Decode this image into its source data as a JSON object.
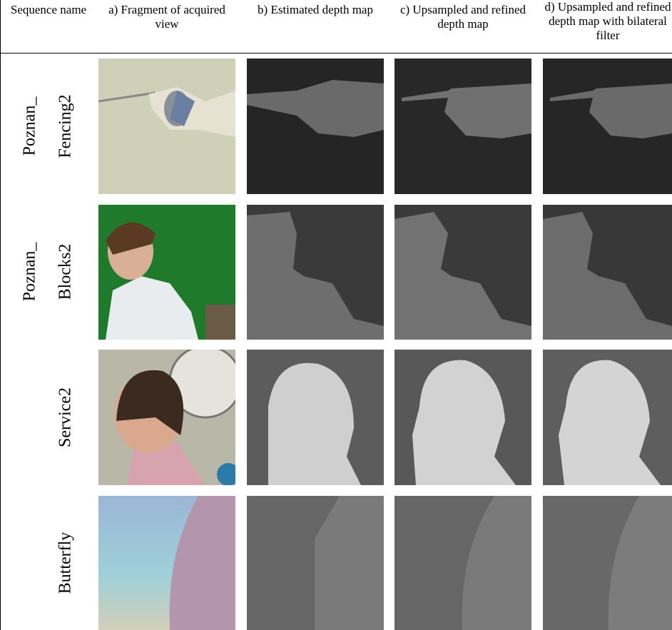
{
  "table": {
    "header": [
      "Sequence name",
      "a) Fragment of acquired view",
      "b) Estimated depth map",
      "c) Upsampled and refined depth map",
      "d) Upsampled and refined depth map with bilateral filter"
    ],
    "rows": [
      {
        "name": [
          "Poznan_",
          "Fencing2"
        ]
      },
      {
        "name": [
          "Poznan_",
          "Blocks2"
        ]
      },
      {
        "name": [
          "Service2"
        ]
      },
      {
        "name": [
          "Butterfly"
        ]
      }
    ]
  }
}
